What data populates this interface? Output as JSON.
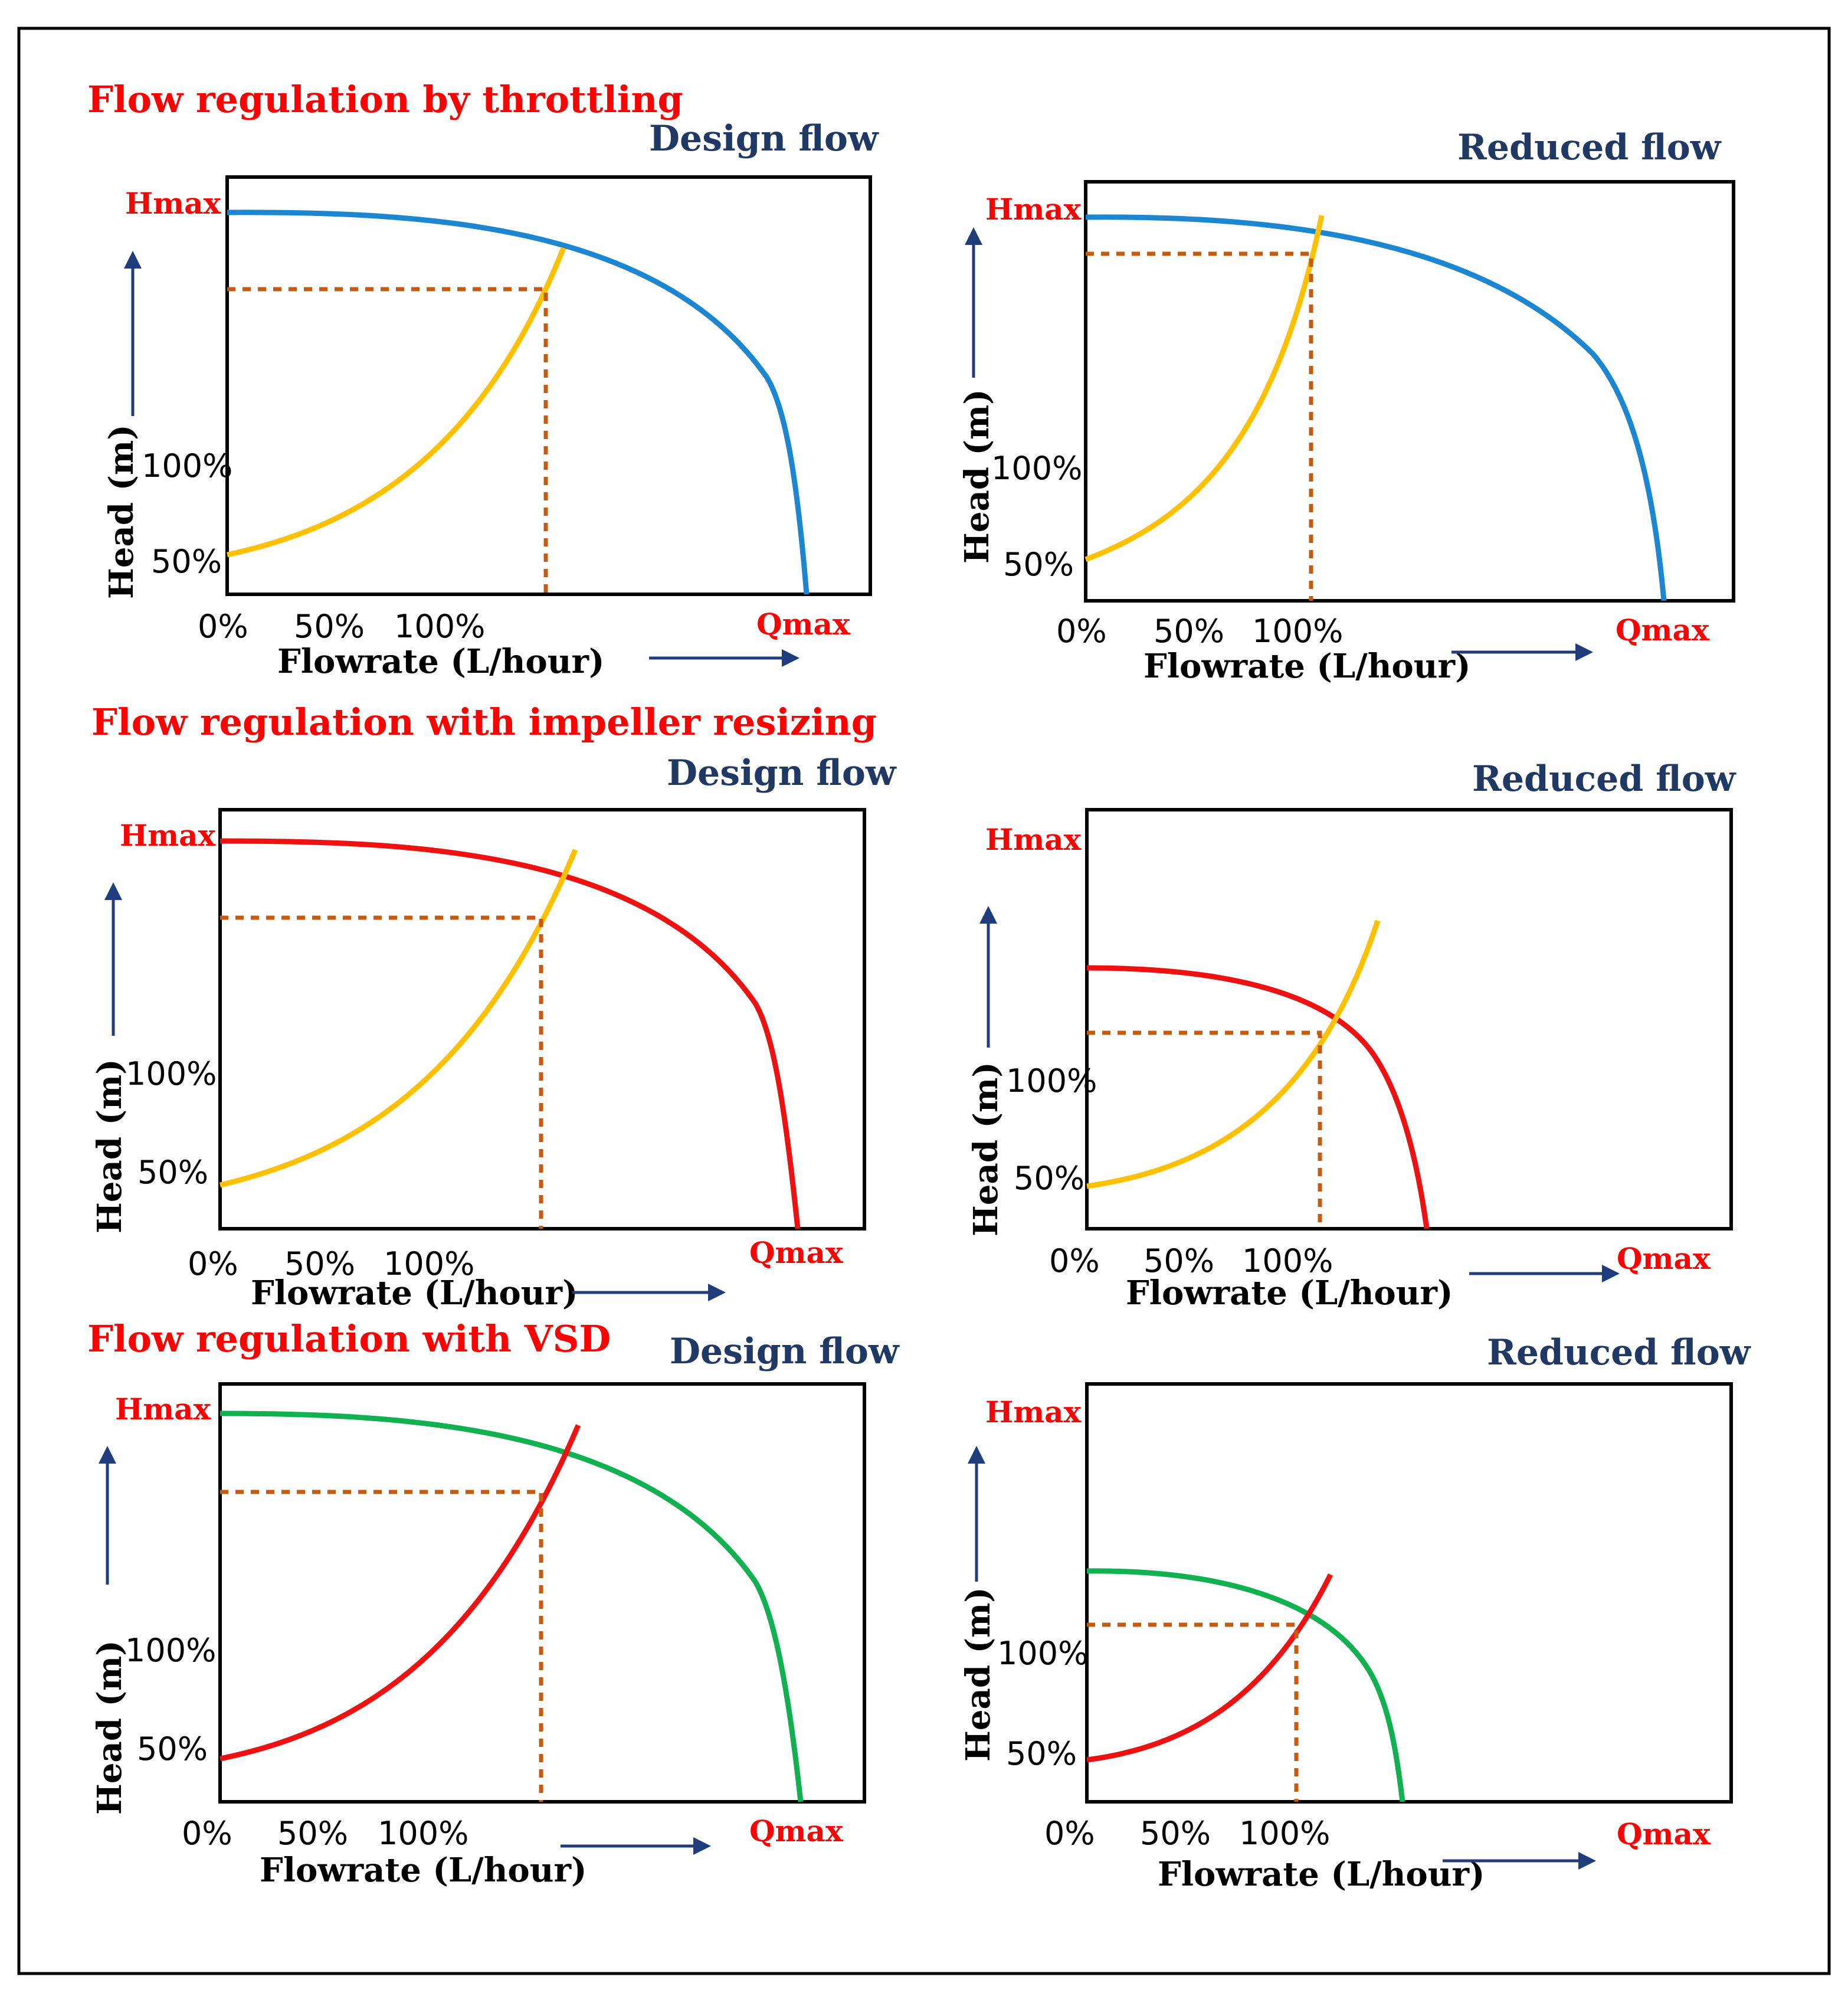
{
  "section_titles": [
    "Flow regulation by throttling",
    "Flow regulation with impeller resizing",
    "Flow regulation with VSD"
  ],
  "colors": {
    "title_red": "#ff0000",
    "heading_navy": "#1f3864",
    "label_red": "#ff0000",
    "arrow_navy": "#1f3d7a",
    "pump_blue": "#1c86d0",
    "pump_red": "#ee1111",
    "pump_green": "#11b050",
    "system_yellow": "#ffc000",
    "system_red": "#ee1111",
    "operating_point_brown": "#c55a11",
    "frame": "#000000"
  },
  "axis": {
    "hmax": "Hmax",
    "qmax": "Qmax",
    "y_label": "Head (m)",
    "x_label": "Flowrate (L/hour)",
    "y_ticks": [
      "100%",
      "50%"
    ],
    "x_ticks": [
      "0%",
      "50%",
      "100%"
    ]
  },
  "panels": [
    {
      "heading": "Design flow",
      "pump_curve_color": "blue",
      "system_curve_color": "yellow"
    },
    {
      "heading": "Reduced flow",
      "pump_curve_color": "blue",
      "system_curve_color": "yellow"
    },
    {
      "heading": "Design flow",
      "pump_curve_color": "red",
      "system_curve_color": "yellow"
    },
    {
      "heading": "Reduced flow",
      "pump_curve_color": "red",
      "system_curve_color": "yellow"
    },
    {
      "heading": "Design flow",
      "pump_curve_color": "green",
      "system_curve_color": "red"
    },
    {
      "heading": "Reduced flow",
      "pump_curve_color": "green",
      "system_curve_color": "red"
    }
  ]
}
